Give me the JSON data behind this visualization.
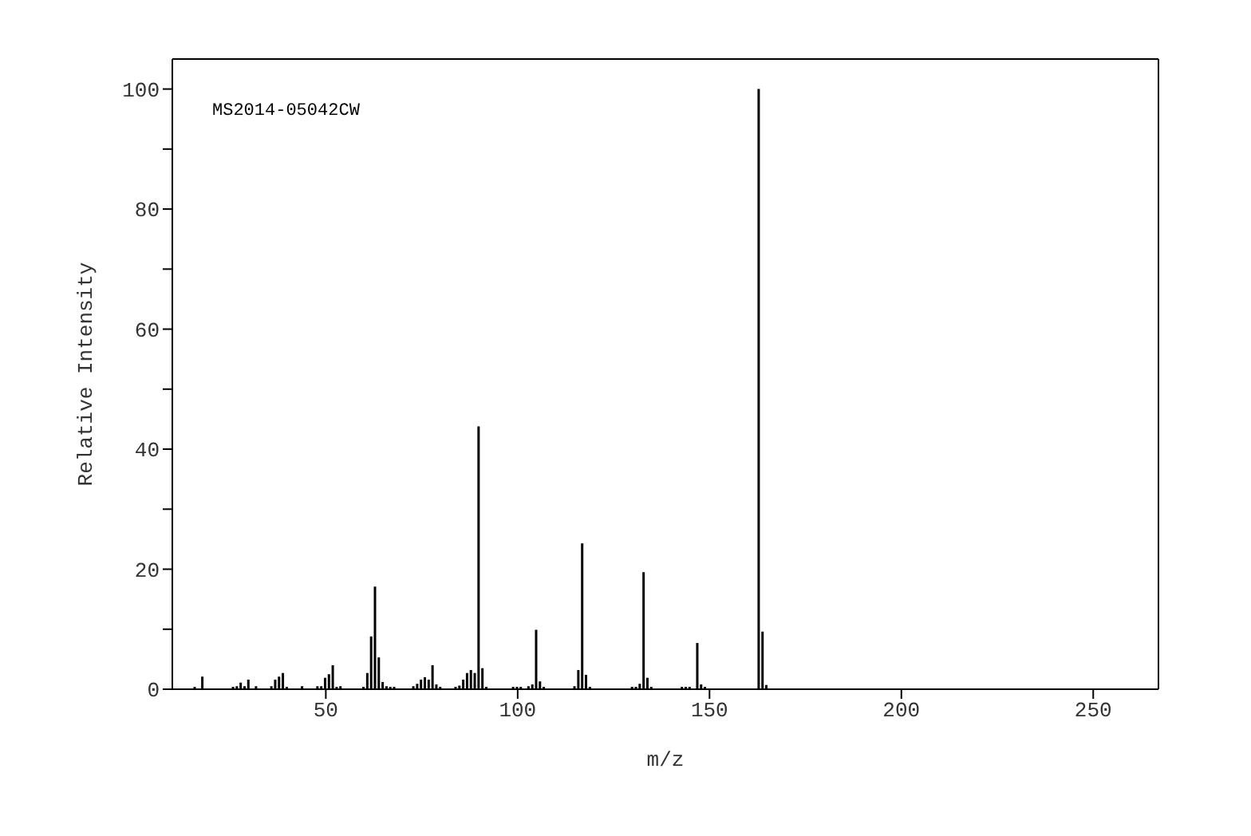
{
  "chart_data": {
    "type": "bar",
    "xlabel": "m/z",
    "ylabel": "Relative Intensity",
    "annotations": [
      "MS2014-05042CW"
    ],
    "x": [
      16,
      18,
      26,
      27,
      28,
      29,
      30,
      32,
      36,
      37,
      38,
      39,
      40,
      44,
      48,
      49,
      50,
      51,
      52,
      53,
      54,
      60,
      61,
      62,
      63,
      64,
      65,
      66,
      67,
      68,
      73,
      74,
      75,
      76,
      77,
      78,
      79,
      80,
      84,
      85,
      86,
      87,
      88,
      89,
      90,
      91,
      92,
      99,
      100,
      101,
      103,
      104,
      105,
      106,
      107,
      115,
      116,
      117,
      118,
      119,
      130,
      131,
      132,
      133,
      134,
      135,
      143,
      144,
      145,
      147,
      148,
      149,
      163,
      164,
      165
    ],
    "values": [
      0.4,
      2.1,
      0.4,
      0.5,
      1.1,
      0.5,
      1.6,
      0.5,
      0.5,
      1.6,
      2.1,
      2.7,
      0.4,
      0.5,
      0.5,
      0.5,
      1.9,
      2.5,
      4.0,
      0.4,
      0.5,
      0.4,
      2.7,
      8.8,
      17.1,
      5.3,
      1.2,
      0.5,
      0.4,
      0.4,
      0.5,
      0.9,
      1.6,
      2.0,
      1.6,
      4.0,
      0.8,
      0.4,
      0.4,
      0.6,
      1.6,
      2.7,
      3.2,
      2.7,
      43.8,
      3.5,
      0.4,
      0.4,
      0.4,
      0.4,
      0.5,
      0.8,
      9.9,
      1.3,
      0.4,
      0.5,
      3.2,
      24.3,
      2.4,
      0.4,
      0.4,
      0.4,
      0.9,
      19.5,
      1.9,
      0.4,
      0.4,
      0.4,
      0.4,
      7.7,
      0.8,
      0.4,
      100,
      9.6,
      0.7
    ],
    "color": "#000000",
    "xlim": [
      10,
      267
    ],
    "xticks": [
      50,
      100,
      150,
      200,
      250
    ],
    "ylim": [
      0,
      105
    ],
    "yticks": [
      0,
      {
        "value": 10,
        "label": null
      },
      20,
      {
        "value": 30,
        "label": null
      },
      40,
      {
        "value": 50,
        "label": null
      },
      60,
      {
        "value": 70,
        "label": null
      },
      80,
      {
        "value": 90,
        "label": null
      },
      100
    ]
  }
}
